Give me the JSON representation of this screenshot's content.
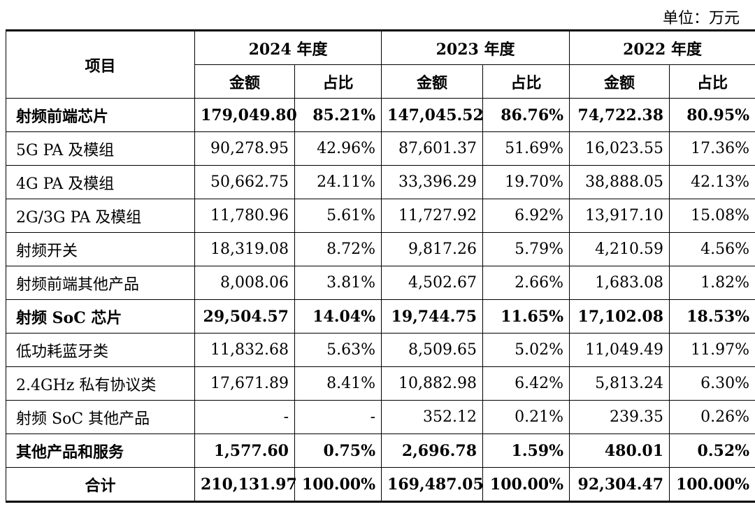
{
  "unit_label": "单位：万元",
  "header": {
    "item": "项目",
    "years": [
      "2024 年度",
      "2023 年度",
      "2022 年度"
    ],
    "amount": "金额",
    "ratio": "占比"
  },
  "rows": [
    {
      "label": "射频前端芯片",
      "bold": true,
      "values": [
        "179,049.80",
        "85.21%",
        "147,045.52",
        "86.76%",
        "74,722.38",
        "80.95%"
      ]
    },
    {
      "label": "5G PA 及模组",
      "bold": false,
      "values": [
        "90,278.95",
        "42.96%",
        "87,601.37",
        "51.69%",
        "16,023.55",
        "17.36%"
      ]
    },
    {
      "label": "4G PA 及模组",
      "bold": false,
      "values": [
        "50,662.75",
        "24.11%",
        "33,396.29",
        "19.70%",
        "38,888.05",
        "42.13%"
      ]
    },
    {
      "label": "2G/3G PA 及模组",
      "bold": false,
      "values": [
        "11,780.96",
        "5.61%",
        "11,727.92",
        "6.92%",
        "13,917.10",
        "15.08%"
      ]
    },
    {
      "label": "射频开关",
      "bold": false,
      "values": [
        "18,319.08",
        "8.72%",
        "9,817.26",
        "5.79%",
        "4,210.59",
        "4.56%"
      ]
    },
    {
      "label": "射频前端其他产品",
      "bold": false,
      "values": [
        "8,008.06",
        "3.81%",
        "4,502.67",
        "2.66%",
        "1,683.08",
        "1.82%"
      ]
    },
    {
      "label": "射频 SoC 芯片",
      "bold": true,
      "values": [
        "29,504.57",
        "14.04%",
        "19,744.75",
        "11.65%",
        "17,102.08",
        "18.53%"
      ]
    },
    {
      "label": "低功耗蓝牙类",
      "bold": false,
      "values": [
        "11,832.68",
        "5.63%",
        "8,509.65",
        "5.02%",
        "11,049.49",
        "11.97%"
      ]
    },
    {
      "label": "2.4GHz 私有协议类",
      "bold": false,
      "values": [
        "17,671.89",
        "8.41%",
        "10,882.98",
        "6.42%",
        "5,813.24",
        "6.30%"
      ]
    },
    {
      "label": "射频 SoC 其他产品",
      "bold": false,
      "values": [
        "-",
        "-",
        "352.12",
        "0.21%",
        "239.35",
        "0.26%"
      ]
    },
    {
      "label": "其他产品和服务",
      "bold": true,
      "values": [
        "1,577.60",
        "0.75%",
        "2,696.78",
        "1.59%",
        "480.01",
        "0.52%"
      ]
    },
    {
      "label": "合计",
      "bold": true,
      "center": true,
      "values": [
        "210,131.97",
        "100.00%",
        "169,487.05",
        "100.00%",
        "92,304.47",
        "100.00%"
      ]
    }
  ]
}
